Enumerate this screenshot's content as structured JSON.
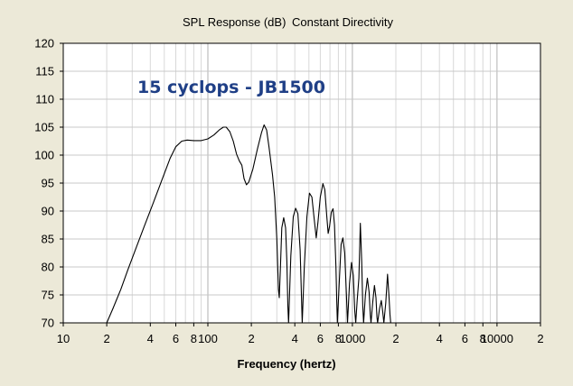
{
  "chart_data": {
    "type": "line",
    "title": "SPL Response (dB)",
    "subtitle": "Constant Directivity",
    "xlabel": "Frequency (hertz)",
    "ylabel": "",
    "annotation": "15 cyclops - JB1500",
    "x_scale": "log",
    "xlim": [
      10,
      20000
    ],
    "ylim": [
      70,
      120
    ],
    "grid": true,
    "x_tick_labels": [
      {
        "value": 10,
        "label": "10"
      },
      {
        "value": 20,
        "label": "2"
      },
      {
        "value": 40,
        "label": "4"
      },
      {
        "value": 60,
        "label": "6"
      },
      {
        "value": 80,
        "label": "8"
      },
      {
        "value": 100,
        "label": "100"
      },
      {
        "value": 200,
        "label": "2"
      },
      {
        "value": 400,
        "label": "4"
      },
      {
        "value": 600,
        "label": "6"
      },
      {
        "value": 800,
        "label": "8"
      },
      {
        "value": 1000,
        "label": "1000"
      },
      {
        "value": 2000,
        "label": "2"
      },
      {
        "value": 4000,
        "label": "4"
      },
      {
        "value": 6000,
        "label": "6"
      },
      {
        "value": 8000,
        "label": "8"
      },
      {
        "value": 10000,
        "label": "10000"
      },
      {
        "value": 20000,
        "label": "2"
      }
    ],
    "y_ticks": [
      70,
      75,
      80,
      85,
      90,
      95,
      100,
      105,
      110,
      115,
      120
    ],
    "series": [
      {
        "color": "#000000",
        "points": [
          [
            20,
            70
          ],
          [
            22,
            72.5
          ],
          [
            25,
            76
          ],
          [
            28,
            79.5
          ],
          [
            32,
            83.5
          ],
          [
            36,
            87
          ],
          [
            42,
            91.5
          ],
          [
            48,
            95.5
          ],
          [
            55,
            99.5
          ],
          [
            60,
            101.5
          ],
          [
            66,
            102.5
          ],
          [
            72,
            102.7
          ],
          [
            80,
            102.6
          ],
          [
            90,
            102.6
          ],
          [
            100,
            102.9
          ],
          [
            110,
            103.6
          ],
          [
            120,
            104.5
          ],
          [
            128,
            105
          ],
          [
            134,
            105
          ],
          [
            142,
            104.2
          ],
          [
            150,
            102.5
          ],
          [
            158,
            100.2
          ],
          [
            165,
            99
          ],
          [
            172,
            98.2
          ],
          [
            178,
            95.8
          ],
          [
            185,
            94.7
          ],
          [
            192,
            95.2
          ],
          [
            205,
            97.5
          ],
          [
            220,
            101
          ],
          [
            235,
            104
          ],
          [
            245,
            105.4
          ],
          [
            255,
            104.5
          ],
          [
            265,
            101.5
          ],
          [
            280,
            96.5
          ],
          [
            290,
            92.5
          ],
          [
            300,
            85
          ],
          [
            308,
            76
          ],
          [
            312,
            74.5
          ],
          [
            318,
            80
          ],
          [
            325,
            87
          ],
          [
            335,
            88.8
          ],
          [
            345,
            87
          ],
          [
            352,
            81
          ],
          [
            358,
            73
          ],
          [
            362,
            70
          ],
          [
            375,
            82
          ],
          [
            390,
            89
          ],
          [
            405,
            90.5
          ],
          [
            420,
            89.5
          ],
          [
            435,
            83
          ],
          [
            445,
            74
          ],
          [
            450,
            70
          ],
          [
            465,
            80
          ],
          [
            485,
            89
          ],
          [
            505,
            93.2
          ],
          [
            525,
            92.5
          ],
          [
            545,
            88.5
          ],
          [
            562,
            85.2
          ],
          [
            578,
            88
          ],
          [
            600,
            92.5
          ],
          [
            625,
            94.9
          ],
          [
            645,
            93.8
          ],
          [
            665,
            89
          ],
          [
            680,
            86
          ],
          [
            695,
            87.2
          ],
          [
            715,
            89.8
          ],
          [
            735,
            90.4
          ],
          [
            752,
            87.5
          ],
          [
            770,
            80
          ],
          [
            780,
            74
          ],
          [
            787,
            70
          ],
          [
            810,
            77
          ],
          [
            835,
            84
          ],
          [
            860,
            85.2
          ],
          [
            885,
            82.5
          ],
          [
            910,
            75
          ],
          [
            925,
            70
          ],
          [
            955,
            77
          ],
          [
            985,
            80.8
          ],
          [
            1015,
            78.5
          ],
          [
            1040,
            72
          ],
          [
            1055,
            70
          ],
          [
            1080,
            74
          ],
          [
            1110,
            78
          ],
          [
            1135,
            87.8
          ],
          [
            1160,
            81
          ],
          [
            1180,
            73
          ],
          [
            1195,
            70
          ],
          [
            1230,
            75
          ],
          [
            1270,
            78
          ],
          [
            1305,
            75.5
          ],
          [
            1330,
            71.5
          ],
          [
            1345,
            70
          ],
          [
            1380,
            73.5
          ],
          [
            1420,
            76.7
          ],
          [
            1455,
            74.5
          ],
          [
            1480,
            71
          ],
          [
            1495,
            70
          ],
          [
            1540,
            72.5
          ],
          [
            1585,
            74
          ],
          [
            1625,
            71.8
          ],
          [
            1650,
            70
          ],
          [
            1700,
            73.5
          ],
          [
            1750,
            78.7
          ],
          [
            1790,
            75
          ],
          [
            1820,
            71.5
          ],
          [
            1840,
            70
          ]
        ]
      }
    ]
  }
}
